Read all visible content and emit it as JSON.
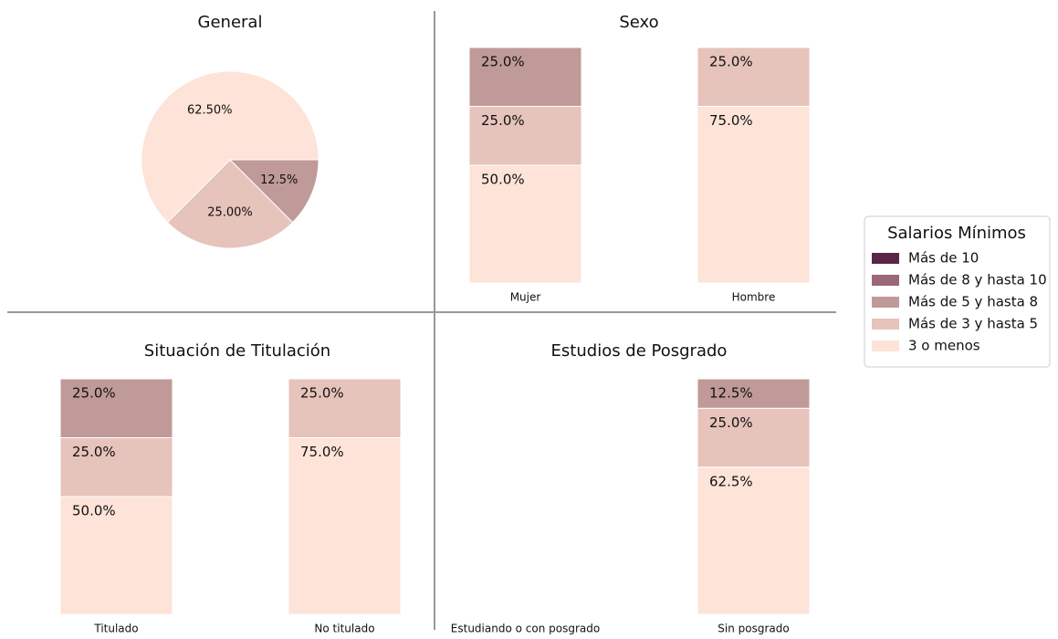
{
  "legend_title": "Salarios Mínimos",
  "chart_data": [
    {
      "type": "pie",
      "title": "General",
      "categories": [
        "3 o menos",
        "Más de 3 y hasta 5",
        "Más de 5 y hasta 8"
      ],
      "values": [
        62.5,
        25,
        12.5
      ],
      "value_labels": [
        "62.50%",
        "25.00%",
        "12.5%"
      ],
      "colors": [
        "#fde3d8",
        "#e6c3bb",
        "#c09a98"
      ]
    },
    {
      "type": "stacked_bar",
      "title": "Sexo",
      "categories": [
        "Mujer",
        "Hombre"
      ],
      "ylim": [
        0,
        100
      ],
      "series": [
        {
          "name": "3 o menos",
          "color": "#fde3d8",
          "values": [
            50,
            75
          ],
          "value_labels": [
            "50.0%",
            "75.0%"
          ]
        },
        {
          "name": "Más de 3 y hasta 5",
          "color": "#e6c3bb",
          "values": [
            25,
            25
          ],
          "value_labels": [
            "25.0%",
            "25.0%"
          ]
        },
        {
          "name": "Más de 5 y hasta 8",
          "color": "#c09a98",
          "values": [
            25,
            0
          ],
          "value_labels": [
            "25.0%",
            null
          ]
        },
        {
          "name": "Más de 8 y hasta 10",
          "color": "#9a6878",
          "values": [
            0,
            0
          ],
          "value_labels": [
            null,
            null
          ]
        },
        {
          "name": "Más de 10",
          "color": "#5a2548",
          "values": [
            0,
            0
          ],
          "value_labels": [
            null,
            null
          ]
        }
      ]
    },
    {
      "type": "stacked_bar",
      "title": "Situación de Titulación",
      "categories": [
        "Titulado",
        "No titulado"
      ],
      "ylim": [
        0,
        100
      ],
      "series": [
        {
          "name": "3 o menos",
          "color": "#fde3d8",
          "values": [
            50,
            75
          ],
          "value_labels": [
            "50.0%",
            "75.0%"
          ]
        },
        {
          "name": "Más de 3 y hasta 5",
          "color": "#e6c3bb",
          "values": [
            25,
            25
          ],
          "value_labels": [
            "25.0%",
            "25.0%"
          ]
        },
        {
          "name": "Más de 5 y hasta 8",
          "color": "#c09a98",
          "values": [
            25,
            0
          ],
          "value_labels": [
            "25.0%",
            null
          ]
        },
        {
          "name": "Más de 8 y hasta 10",
          "color": "#9a6878",
          "values": [
            0,
            0
          ],
          "value_labels": [
            null,
            null
          ]
        },
        {
          "name": "Más de 10",
          "color": "#5a2548",
          "values": [
            0,
            0
          ],
          "value_labels": [
            null,
            null
          ]
        }
      ]
    },
    {
      "type": "stacked_bar",
      "title": "Estudios de Posgrado",
      "categories": [
        "Estudiando o con posgrado",
        "Sin posgrado"
      ],
      "ylim": [
        0,
        100
      ],
      "series": [
        {
          "name": "3 o menos",
          "color": "#fde3d8",
          "values": [
            null,
            62.5
          ],
          "value_labels": [
            null,
            "62.5%"
          ]
        },
        {
          "name": "Más de 3 y hasta 5",
          "color": "#e6c3bb",
          "values": [
            null,
            25
          ],
          "value_labels": [
            null,
            "25.0%"
          ]
        },
        {
          "name": "Más de 5 y hasta 8",
          "color": "#c09a98",
          "values": [
            null,
            12.5
          ],
          "value_labels": [
            null,
            "12.5%"
          ]
        },
        {
          "name": "Más de 8 y hasta 10",
          "color": "#9a6878",
          "values": [
            null,
            0
          ],
          "value_labels": [
            null,
            null
          ]
        },
        {
          "name": "Más de 10",
          "color": "#5a2548",
          "values": [
            null,
            0
          ],
          "value_labels": [
            null,
            null
          ]
        }
      ]
    }
  ]
}
